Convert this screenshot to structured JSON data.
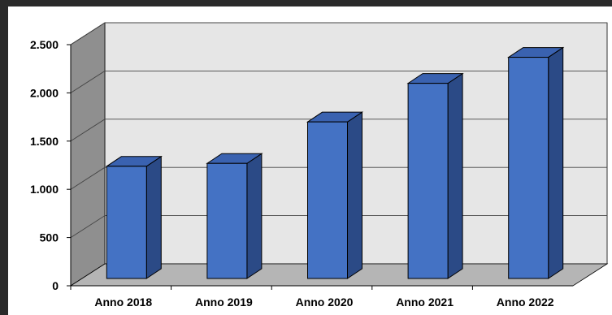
{
  "chart_data": {
    "type": "bar",
    "categories": [
      "Anno 2018",
      "Anno 2019",
      "Anno 2020",
      "Anno 2021",
      "Anno 2022"
    ],
    "values": [
      1340,
      1370,
      1800,
      2200,
      2470
    ],
    "ylim": [
      0,
      2500
    ],
    "yticks": [
      0,
      500,
      1000,
      1500,
      2000,
      2500
    ],
    "ytick_labels": [
      "0",
      "500",
      "1.000",
      "1.500",
      "2.000",
      "2.500"
    ],
    "grid": true,
    "style": "3d-column",
    "colors": {
      "bar_front": "#4472c4",
      "bar_side": "#2b4a86",
      "bar_top": "#3a62b0",
      "wall_back": "#e6e6e6",
      "wall_left": "#8f8f8f",
      "floor": "#b5b5b5",
      "frame_bg": "#2a2a2a"
    }
  }
}
